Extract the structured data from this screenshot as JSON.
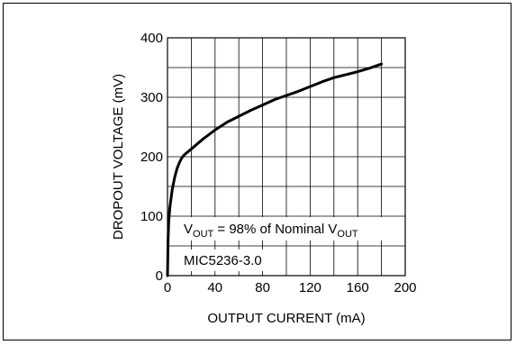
{
  "chart_data": {
    "type": "line",
    "xlabel": "OUTPUT CURRENT (mA)",
    "ylabel": "DROPOUT VOLTAGE (mV)",
    "xlim": [
      0,
      200
    ],
    "ylim": [
      0,
      400
    ],
    "x_ticks": [
      "0",
      "40",
      "80",
      "120",
      "160",
      "200"
    ],
    "y_ticks": [
      "0",
      "100",
      "200",
      "300",
      "400"
    ],
    "grid": true,
    "annotations": {
      "condition_v": "V",
      "condition_sub1": "OUT",
      "condition_mid": " = 98% of Nominal V",
      "condition_sub2": "OUT",
      "part": "MIC5236-3.0"
    },
    "series": [
      {
        "x": [
          0,
          0.5,
          1,
          2,
          4,
          6,
          8,
          10,
          12,
          14,
          20,
          30,
          40,
          50,
          60,
          70,
          80,
          90,
          100,
          110,
          120,
          130,
          140,
          150,
          160,
          170,
          180
        ],
        "y": [
          0,
          60,
          90,
          115,
          145,
          165,
          180,
          190,
          198,
          203,
          213,
          230,
          245,
          258,
          268,
          278,
          287,
          296,
          303,
          310,
          318,
          326,
          333,
          338,
          343,
          349,
          356
        ]
      }
    ]
  }
}
